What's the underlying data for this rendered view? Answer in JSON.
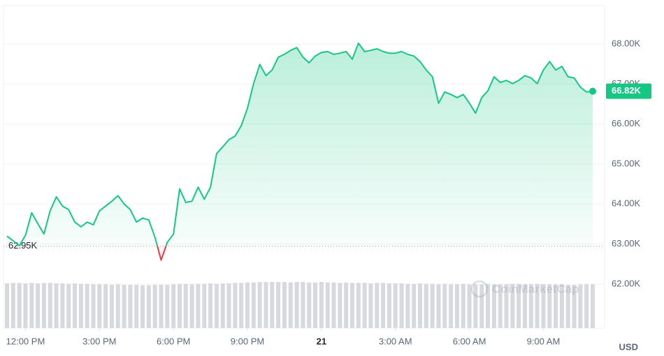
{
  "chart_data": {
    "type": "line",
    "series": [
      {
        "name": "Price",
        "color": "#16c784",
        "below_color": "#ea3943",
        "values": [
          63200,
          63080,
          62960,
          63220,
          63780,
          63510,
          63250,
          63830,
          64180,
          63950,
          63860,
          63550,
          63430,
          63550,
          63480,
          63830,
          63950,
          64070,
          64210,
          64000,
          63860,
          63550,
          63650,
          63600,
          63170,
          62600,
          63040,
          63250,
          64380,
          64040,
          64070,
          64420,
          64120,
          64420,
          65260,
          65430,
          65610,
          65700,
          65960,
          66390,
          67010,
          67490,
          67210,
          67350,
          67670,
          67740,
          67840,
          67910,
          67670,
          67530,
          67700,
          67790,
          67810,
          67740,
          67770,
          67810,
          67620,
          68020,
          67810,
          67840,
          67880,
          67810,
          67770,
          67770,
          67810,
          67740,
          67700,
          67560,
          67350,
          67180,
          66520,
          66800,
          66740,
          66660,
          66740,
          66520,
          66270,
          66660,
          66830,
          67180,
          67040,
          67090,
          67010,
          67090,
          67210,
          67150,
          67010,
          67350,
          67560,
          67350,
          67440,
          67180,
          67150,
          66920,
          66800,
          66820
        ]
      }
    ],
    "volume": {
      "color": "#d7d9de",
      "ylim": [
        0,
        100
      ],
      "values": [
        97,
        98,
        98,
        97,
        98,
        97,
        98,
        98,
        97,
        97,
        96,
        97,
        96,
        96,
        95,
        95,
        95,
        94,
        95,
        94,
        94,
        94,
        93,
        93,
        94,
        94,
        94,
        95,
        96,
        96,
        95,
        96,
        96,
        97,
        96,
        97,
        97,
        98,
        98,
        99,
        99,
        100,
        100,
        100,
        100,
        100,
        99,
        100,
        100,
        99,
        99,
        100,
        99,
        99,
        98,
        99,
        98,
        98,
        98,
        97,
        98,
        98,
        97,
        97,
        97,
        96,
        96,
        97,
        96,
        96,
        95,
        96,
        95,
        95,
        96,
        95,
        95,
        95,
        96,
        95,
        95,
        95,
        96,
        96,
        95,
        95,
        96,
        95,
        95,
        95,
        95,
        94,
        94,
        95,
        95,
        95
      ]
    },
    "xlim": [
      0,
      95
    ],
    "xticks": [
      {
        "value": 3,
        "label": "12:00 PM"
      },
      {
        "value": 15,
        "label": "3:00 PM"
      },
      {
        "value": 27,
        "label": "6:00 PM"
      },
      {
        "value": 39,
        "label": "9:00 PM"
      },
      {
        "value": 51,
        "label": "21"
      },
      {
        "value": 63,
        "label": "3:00 AM"
      },
      {
        "value": 75,
        "label": "6:00 AM"
      },
      {
        "value": 87,
        "label": "9:00 AM"
      }
    ],
    "ylim": [
      60900,
      68960
    ],
    "yticks": [
      {
        "value": 62000,
        "label": "62.00K"
      },
      {
        "value": 63000,
        "label": "63.00K"
      },
      {
        "value": 64000,
        "label": "64.00K"
      },
      {
        "value": 65000,
        "label": "65.00K"
      },
      {
        "value": 66000,
        "label": "66.00K"
      },
      {
        "value": 67000,
        "label": "67.00K"
      },
      {
        "value": 68000,
        "label": "68.00K"
      }
    ],
    "baseline": {
      "value": 62950,
      "label": "62.95K"
    },
    "last_price": {
      "value": 66820,
      "label": "66.82K"
    },
    "currency": "USD",
    "watermark": "CoinMarketCap",
    "grid": true
  }
}
